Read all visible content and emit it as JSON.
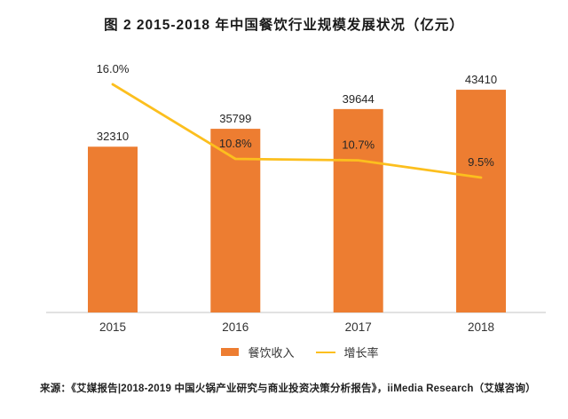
{
  "figure": {
    "title": "图 2  2015-2018 年中国餐饮行业规模发展状况（亿元）",
    "source_note": "来源：《艾媒报告|2018-2019 中国火锅产业研究与商业投资决策分析报告》，iiMedia Research（艾媒咨询）"
  },
  "legend": {
    "bar_label": "餐饮收入",
    "line_label": "增长率"
  },
  "colors": {
    "bar": "#ED7D31",
    "line": "#FCBF1E",
    "axis": "#D9D9D9",
    "label_text": "#262626",
    "year_text": "#333333"
  },
  "chart_data": {
    "type": "bar",
    "subtype": "bar-line-combo",
    "title": "图 2  2015-2018 年中国餐饮行业规模发展状况（亿元）",
    "categories": [
      "2015",
      "2016",
      "2017",
      "2018"
    ],
    "series": [
      {
        "name": "餐饮收入",
        "type": "bar",
        "unit": "亿元",
        "values": [
          32310,
          35799,
          39644,
          43410
        ],
        "value_labels": [
          "32310",
          "35799",
          "39644",
          "43410"
        ]
      },
      {
        "name": "增长率",
        "type": "line",
        "unit": "%",
        "values": [
          16.0,
          10.8,
          10.7,
          9.5
        ],
        "value_labels": [
          "16.0%",
          "10.8%",
          "10.7%",
          "9.5%"
        ]
      }
    ],
    "xlabel": "",
    "ylabel": "",
    "grid": false,
    "y_axis_visible": false,
    "legend_position": "bottom"
  }
}
